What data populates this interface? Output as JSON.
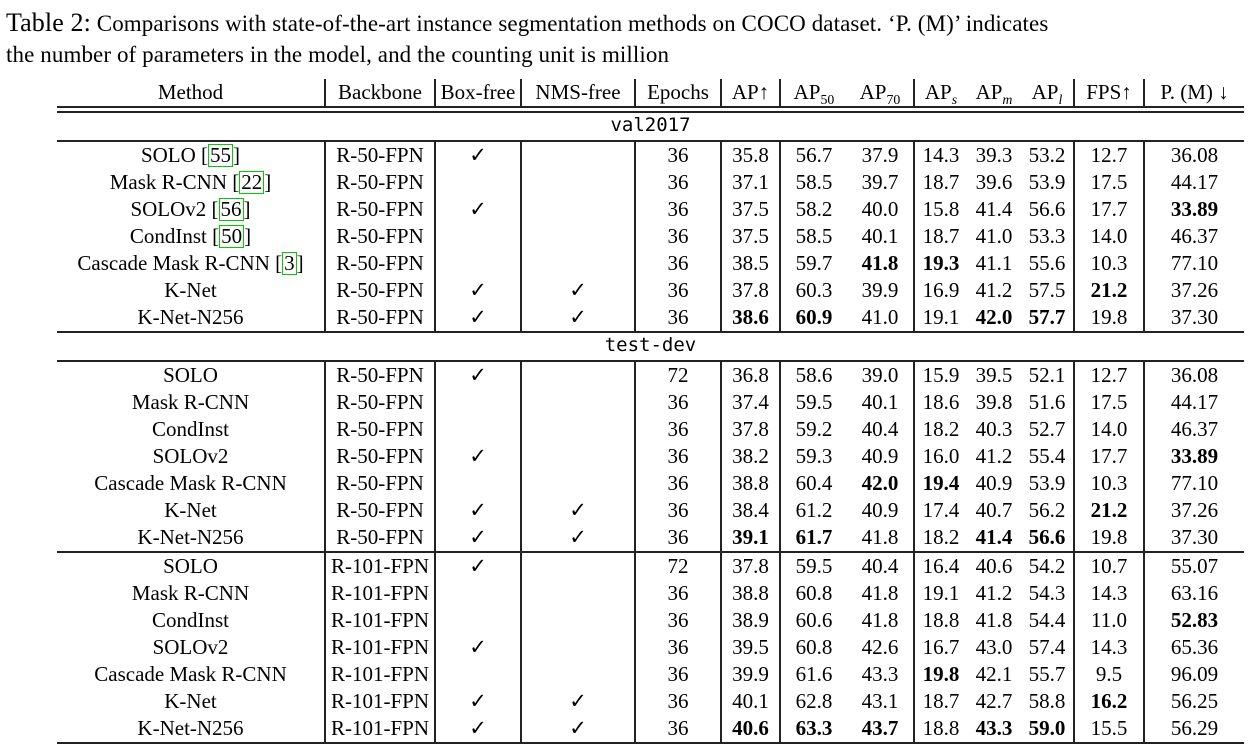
{
  "caption": {
    "label": "Table 2:",
    "line1": " Comparisons with state-of-the-art instance segmentation methods on COCO dataset. ‘P. (M)’ indicates",
    "line2": "the number of parameters in the model, and the counting unit is million"
  },
  "table": {
    "columns": [
      {
        "key": "method",
        "label": "Method"
      },
      {
        "key": "backbone",
        "label": "Backbone"
      },
      {
        "key": "box",
        "label": "Box-free"
      },
      {
        "key": "nms",
        "label": "NMS-free"
      },
      {
        "key": "epochs",
        "label": "Epochs"
      },
      {
        "key": "ap",
        "label": "AP",
        "arrow": "↑"
      },
      {
        "key": "ap50",
        "label": "AP",
        "sub": "50"
      },
      {
        "key": "ap70",
        "label": "AP",
        "sub": "70"
      },
      {
        "key": "aps",
        "label": "AP",
        "sub": "s",
        "italic_sub": true
      },
      {
        "key": "apm",
        "label": "AP",
        "sub": "m",
        "italic_sub": true
      },
      {
        "key": "apl",
        "label": "AP",
        "sub": "l",
        "italic_sub": true
      },
      {
        "key": "fps",
        "label": "FPS",
        "arrow": "↑"
      },
      {
        "key": "pm",
        "label": "P. (M)",
        "arrow": "↓",
        "arrow_spaced": true
      }
    ],
    "checkmark_glyph": "✓",
    "citation_box_color": "#00cc00",
    "sections": [
      {
        "label": "val2017",
        "blocks": [
          {
            "rows": [
              {
                "method": "SOLO",
                "cite": "55",
                "backbone": "R-50-FPN",
                "box": "✓",
                "nms": "",
                "epochs": "36",
                "ap": "35.8",
                "ap50": "56.7",
                "ap70": "37.9",
                "aps": "14.3",
                "apm": "39.3",
                "apl": "53.2",
                "fps": "12.7",
                "pm": "36.08",
                "bold": []
              },
              {
                "method": "Mask R-CNN",
                "cite": "22",
                "backbone": "R-50-FPN",
                "box": "",
                "nms": "",
                "epochs": "36",
                "ap": "37.1",
                "ap50": "58.5",
                "ap70": "39.7",
                "aps": "18.7",
                "apm": "39.6",
                "apl": "53.9",
                "fps": "17.5",
                "pm": "44.17",
                "bold": []
              },
              {
                "method": "SOLOv2",
                "cite": "56",
                "backbone": "R-50-FPN",
                "box": "✓",
                "nms": "",
                "epochs": "36",
                "ap": "37.5",
                "ap50": "58.2",
                "ap70": "40.0",
                "aps": "15.8",
                "apm": "41.4",
                "apl": "56.6",
                "fps": "17.7",
                "pm": "33.89",
                "bold": [
                  "pm"
                ]
              },
              {
                "method": "CondInst",
                "cite": "50",
                "backbone": "R-50-FPN",
                "box": "",
                "nms": "",
                "epochs": "36",
                "ap": "37.5",
                "ap50": "58.5",
                "ap70": "40.1",
                "aps": "18.7",
                "apm": "41.0",
                "apl": "53.3",
                "fps": "14.0",
                "pm": "46.37",
                "bold": []
              },
              {
                "method": "Cascade Mask R-CNN",
                "cite": "3",
                "backbone": "R-50-FPN",
                "box": "",
                "nms": "",
                "epochs": "36",
                "ap": "38.5",
                "ap50": "59.7",
                "ap70": "41.8",
                "aps": "19.3",
                "apm": "41.1",
                "apl": "55.6",
                "fps": "10.3",
                "pm": "77.10",
                "bold": [
                  "ap70",
                  "aps"
                ]
              },
              {
                "method": "K-Net",
                "backbone": "R-50-FPN",
                "box": "✓",
                "nms": "✓",
                "epochs": "36",
                "ap": "37.8",
                "ap50": "60.3",
                "ap70": "39.9",
                "aps": "16.9",
                "apm": "41.2",
                "apl": "57.5",
                "fps": "21.2",
                "pm": "37.26",
                "bold": [
                  "fps"
                ]
              },
              {
                "method": "K-Net-N256",
                "backbone": "R-50-FPN",
                "box": "✓",
                "nms": "✓",
                "epochs": "36",
                "ap": "38.6",
                "ap50": "60.9",
                "ap70": "41.0",
                "aps": "19.1",
                "apm": "42.0",
                "apl": "57.7",
                "fps": "19.8",
                "pm": "37.30",
                "bold": [
                  "ap",
                  "ap50",
                  "apm",
                  "apl"
                ]
              }
            ]
          }
        ]
      },
      {
        "label": "test-dev",
        "blocks": [
          {
            "rows": [
              {
                "method": "SOLO",
                "backbone": "R-50-FPN",
                "box": "✓",
                "nms": "",
                "epochs": "72",
                "ap": "36.8",
                "ap50": "58.6",
                "ap70": "39.0",
                "aps": "15.9",
                "apm": "39.5",
                "apl": "52.1",
                "fps": "12.7",
                "pm": "36.08",
                "bold": []
              },
              {
                "method": "Mask R-CNN",
                "backbone": "R-50-FPN",
                "box": "",
                "nms": "",
                "epochs": "36",
                "ap": "37.4",
                "ap50": "59.5",
                "ap70": "40.1",
                "aps": "18.6",
                "apm": "39.8",
                "apl": "51.6",
                "fps": "17.5",
                "pm": "44.17",
                "bold": []
              },
              {
                "method": "CondInst",
                "backbone": "R-50-FPN",
                "box": "",
                "nms": "",
                "epochs": "36",
                "ap": "37.8",
                "ap50": "59.2",
                "ap70": "40.4",
                "aps": "18.2",
                "apm": "40.3",
                "apl": "52.7",
                "fps": "14.0",
                "pm": "46.37",
                "bold": []
              },
              {
                "method": "SOLOv2",
                "backbone": "R-50-FPN",
                "box": "✓",
                "nms": "",
                "epochs": "36",
                "ap": "38.2",
                "ap50": "59.3",
                "ap70": "40.9",
                "aps": "16.0",
                "apm": "41.2",
                "apl": "55.4",
                "fps": "17.7",
                "pm": "33.89",
                "bold": [
                  "pm"
                ]
              },
              {
                "method": "Cascade Mask R-CNN",
                "backbone": "R-50-FPN",
                "box": "",
                "nms": "",
                "epochs": "36",
                "ap": "38.8",
                "ap50": "60.4",
                "ap70": "42.0",
                "aps": "19.4",
                "apm": "40.9",
                "apl": "53.9",
                "fps": "10.3",
                "pm": "77.10",
                "bold": [
                  "ap70",
                  "aps"
                ]
              },
              {
                "method": "K-Net",
                "backbone": "R-50-FPN",
                "box": "✓",
                "nms": "✓",
                "epochs": "36",
                "ap": "38.4",
                "ap50": "61.2",
                "ap70": "40.9",
                "aps": "17.4",
                "apm": "40.7",
                "apl": "56.2",
                "fps": "21.2",
                "pm": "37.26",
                "bold": [
                  "fps"
                ]
              },
              {
                "method": "K-Net-N256",
                "backbone": "R-50-FPN",
                "box": "✓",
                "nms": "✓",
                "epochs": "36",
                "ap": "39.1",
                "ap50": "61.7",
                "ap70": "41.8",
                "aps": "18.2",
                "apm": "41.4",
                "apl": "56.6",
                "fps": "19.8",
                "pm": "37.30",
                "bold": [
                  "ap",
                  "ap50",
                  "apm",
                  "apl"
                ]
              }
            ]
          },
          {
            "rows": [
              {
                "method": "SOLO",
                "backbone": "R-101-FPN",
                "box": "✓",
                "nms": "",
                "epochs": "72",
                "ap": "37.8",
                "ap50": "59.5",
                "ap70": "40.4",
                "aps": "16.4",
                "apm": "40.6",
                "apl": "54.2",
                "fps": "10.7",
                "pm": "55.07",
                "bold": []
              },
              {
                "method": "Mask R-CNN",
                "backbone": "R-101-FPN",
                "box": "",
                "nms": "",
                "epochs": "36",
                "ap": "38.8",
                "ap50": "60.8",
                "ap70": "41.8",
                "aps": "19.1",
                "apm": "41.2",
                "apl": "54.3",
                "fps": "14.3",
                "pm": "63.16",
                "bold": []
              },
              {
                "method": "CondInst",
                "backbone": "R-101-FPN",
                "box": "",
                "nms": "",
                "epochs": "36",
                "ap": "38.9",
                "ap50": "60.6",
                "ap70": "41.8",
                "aps": "18.8",
                "apm": "41.8",
                "apl": "54.4",
                "fps": "11.0",
                "pm": "52.83",
                "bold": [
                  "pm"
                ]
              },
              {
                "method": "SOLOv2",
                "backbone": "R-101-FPN",
                "box": "✓",
                "nms": "",
                "epochs": "36",
                "ap": "39.5",
                "ap50": "60.8",
                "ap70": "42.6",
                "aps": "16.7",
                "apm": "43.0",
                "apl": "57.4",
                "fps": "14.3",
                "pm": "65.36",
                "bold": []
              },
              {
                "method": "Cascade Mask R-CNN",
                "backbone": "R-101-FPN",
                "box": "",
                "nms": "",
                "epochs": "36",
                "ap": "39.9",
                "ap50": "61.6",
                "ap70": "43.3",
                "aps": "19.8",
                "apm": "42.1",
                "apl": "55.7",
                "fps": "9.5",
                "pm": "96.09",
                "bold": [
                  "aps"
                ]
              },
              {
                "method": "K-Net",
                "backbone": "R-101-FPN",
                "box": "✓",
                "nms": "✓",
                "epochs": "36",
                "ap": "40.1",
                "ap50": "62.8",
                "ap70": "43.1",
                "aps": "18.7",
                "apm": "42.7",
                "apl": "58.8",
                "fps": "16.2",
                "pm": "56.25",
                "bold": [
                  "fps"
                ]
              },
              {
                "method": "K-Net-N256",
                "backbone": "R-101-FPN",
                "box": "✓",
                "nms": "✓",
                "epochs": "36",
                "ap": "40.6",
                "ap50": "63.3",
                "ap70": "43.7",
                "aps": "18.8",
                "apm": "43.3",
                "apl": "59.0",
                "fps": "15.5",
                "pm": "56.29",
                "bold": [
                  "ap",
                  "ap50",
                  "ap70",
                  "apm",
                  "apl"
                ]
              }
            ]
          }
        ]
      }
    ]
  }
}
